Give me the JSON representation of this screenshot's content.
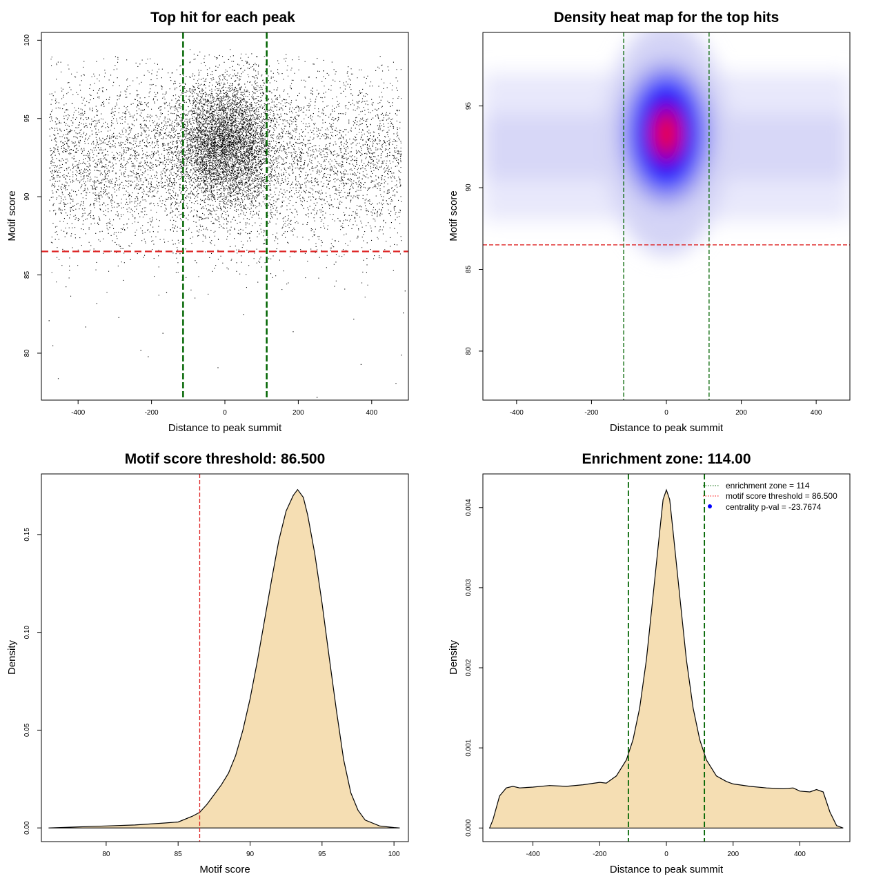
{
  "chart_data": [
    {
      "type": "scatter",
      "title": "Top hit for each peak",
      "xlabel": "Distance to peak summit",
      "ylabel": "Motif score",
      "xlim": [
        -500,
        500
      ],
      "ylim": [
        77,
        100.5
      ],
      "xticks": [
        -400,
        -200,
        0,
        200,
        400
      ],
      "yticks": [
        80,
        85,
        90,
        95,
        100
      ],
      "vlines": [
        -114,
        114
      ],
      "hline": 86.5,
      "points": {
        "background": {
          "count": 6000,
          "x_range": [
            -480,
            480
          ],
          "mean": 92.3,
          "sd": 2.8
        },
        "central": {
          "count": 4800,
          "center": 0,
          "x_sd": 70,
          "mean": 93.5,
          "sd": 2.0
        },
        "low_scatter": [
          {
            "x": -480,
            "y": 82.1
          },
          {
            "x": -470,
            "y": 80.5
          },
          {
            "x": -455,
            "y": 78.4
          },
          {
            "x": -380,
            "y": 81.7
          },
          {
            "x": -350,
            "y": 83.2
          },
          {
            "x": -290,
            "y": 82.3
          },
          {
            "x": -230,
            "y": 80.2
          },
          {
            "x": -210,
            "y": 79.8
          },
          {
            "x": -170,
            "y": 81.3
          },
          {
            "x": -160,
            "y": 83.9
          },
          {
            "x": -20,
            "y": 79.1
          },
          {
            "x": 50,
            "y": 82.5
          },
          {
            "x": 185,
            "y": 81.4
          },
          {
            "x": 250,
            "y": 77.2
          },
          {
            "x": 350,
            "y": 82.2
          },
          {
            "x": 370,
            "y": 79.3
          },
          {
            "x": 465,
            "y": 78.1
          },
          {
            "x": 480,
            "y": 79.9
          },
          {
            "x": 485,
            "y": 82.6
          },
          {
            "x": 490,
            "y": 84.0
          }
        ]
      }
    },
    {
      "type": "heatmap",
      "title": "Density heat map for the top hits",
      "xlabel": "Distance to peak summit",
      "ylabel": "Motif score",
      "xlim": [
        -490,
        490
      ],
      "ylim": [
        77,
        99.5
      ],
      "xticks": [
        -400,
        -200,
        0,
        200,
        400
      ],
      "yticks": [
        80,
        85,
        90,
        95
      ],
      "vlines": [
        -114,
        114
      ],
      "hline": 86.5,
      "peak": {
        "x": 0,
        "y": 93.3
      },
      "colors": {
        "low": "#ffffff",
        "mid": "#0000ff",
        "high": "#ff0000"
      }
    },
    {
      "type": "area",
      "title": "Motif score threshold: 86.500",
      "xlabel": "Motif score",
      "ylabel": "Density",
      "xlim": [
        75.5,
        101
      ],
      "ylim": [
        -0.007,
        0.181
      ],
      "xticks": [
        80,
        85,
        90,
        95,
        100
      ],
      "yticks": [
        0.0,
        0.05,
        0.1,
        0.15
      ],
      "ytick_labels": [
        "0.00",
        "0.05",
        "0.10",
        "0.15"
      ],
      "vline": 86.5,
      "fill": "#f5deb3",
      "x": [
        76,
        78,
        80,
        82,
        83,
        84,
        85,
        86,
        86.5,
        87,
        87.5,
        88,
        88.5,
        89,
        89.5,
        90,
        90.5,
        91,
        91.5,
        92,
        92.5,
        93,
        93.3,
        93.7,
        94,
        94.5,
        95,
        95.5,
        96,
        96.5,
        97,
        97.5,
        98,
        99,
        100,
        100.4
      ],
      "values": [
        0.0,
        0.0005,
        0.001,
        0.0015,
        0.002,
        0.0025,
        0.003,
        0.006,
        0.008,
        0.012,
        0.017,
        0.022,
        0.028,
        0.037,
        0.05,
        0.066,
        0.085,
        0.106,
        0.127,
        0.147,
        0.162,
        0.17,
        0.173,
        0.169,
        0.16,
        0.14,
        0.115,
        0.087,
        0.06,
        0.035,
        0.018,
        0.009,
        0.004,
        0.001,
        0.0002,
        0.0
      ]
    },
    {
      "type": "area",
      "title": "Enrichment zone: 114.00",
      "xlabel": "Distance to peak summit",
      "ylabel": "Density",
      "xlim": [
        -550,
        550
      ],
      "ylim": [
        -0.00017,
        0.00442
      ],
      "xticks": [
        -400,
        -200,
        0,
        200,
        400
      ],
      "yticks": [
        0.0,
        0.001,
        0.002,
        0.003,
        0.004
      ],
      "ytick_labels": [
        "0.000",
        "0.001",
        "0.002",
        "0.003",
        "0.004"
      ],
      "vlines": [
        -114,
        114
      ],
      "fill": "#f5deb3",
      "x": [
        -530,
        -520,
        -500,
        -480,
        -460,
        -440,
        -400,
        -350,
        -300,
        -250,
        -200,
        -180,
        -150,
        -120,
        -100,
        -80,
        -60,
        -40,
        -20,
        -10,
        0,
        10,
        20,
        40,
        60,
        80,
        100,
        120,
        150,
        180,
        200,
        250,
        300,
        350,
        380,
        400,
        430,
        450,
        470,
        490,
        510,
        530
      ],
      "values": [
        0.0,
        0.0001,
        0.0004,
        0.0005,
        0.00052,
        0.0005,
        0.00051,
        0.00053,
        0.00052,
        0.00054,
        0.00057,
        0.00056,
        0.00065,
        0.00085,
        0.0011,
        0.0015,
        0.0021,
        0.0029,
        0.0037,
        0.0041,
        0.00422,
        0.0041,
        0.0037,
        0.0029,
        0.0021,
        0.0015,
        0.0011,
        0.00085,
        0.00065,
        0.00058,
        0.00055,
        0.00052,
        0.0005,
        0.00049,
        0.0005,
        0.00046,
        0.00045,
        0.00048,
        0.00045,
        0.0002,
        3e-05,
        0.0
      ],
      "legend": [
        {
          "label": "enrichment zone = 114",
          "color": "#006400",
          "symbol": "dotted-line"
        },
        {
          "label": "motif score threshold = 86.500",
          "color": "#ff0000",
          "symbol": "dotted-line"
        },
        {
          "label": "centrality p-val = -23.7674",
          "color": "#0000ff",
          "symbol": "dot"
        }
      ],
      "legend_position": "top-right"
    }
  ]
}
